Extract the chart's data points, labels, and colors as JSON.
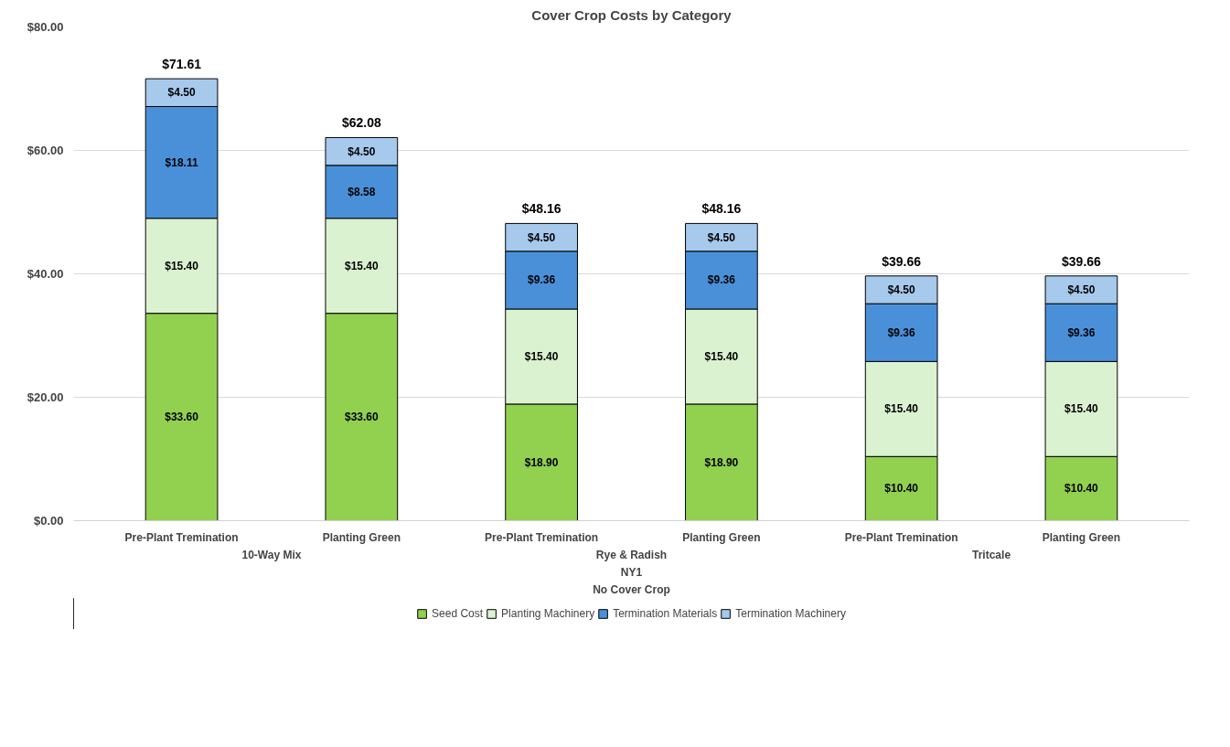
{
  "chart_data": {
    "type": "bar",
    "stacked": true,
    "title": "Cover Crop Costs by Category",
    "categories": [
      "Pre-Plant Tremination",
      "Planting Green",
      "Pre-Plant Tremination",
      "Planting Green",
      "Pre-Plant Tremination",
      "Planting Green"
    ],
    "series": [
      {
        "name": "Seed Cost",
        "color": "#92d050",
        "values": [
          33.6,
          33.6,
          18.9,
          18.9,
          10.4,
          10.4
        ],
        "value_labels": [
          "$33.60",
          "$33.60",
          "$18.90",
          "$18.90",
          "$10.40",
          "$10.40"
        ]
      },
      {
        "name": "Planting Machinery",
        "color": "#daf2d0",
        "values": [
          15.4,
          15.4,
          15.4,
          15.4,
          15.4,
          15.4
        ],
        "value_labels": [
          "$15.40",
          "$15.40",
          "$15.40",
          "$15.40",
          "$15.40",
          "$15.40"
        ]
      },
      {
        "name": "Termination Materials",
        "color": "#4a90d9",
        "values": [
          18.11,
          8.58,
          9.36,
          9.36,
          9.36,
          9.36
        ],
        "value_labels": [
          "$18.11",
          "$8.58",
          "$9.36",
          "$9.36",
          "$9.36",
          "$9.36"
        ]
      },
      {
        "name": "Termination Machinery",
        "color": "#a6c9ec",
        "values": [
          4.5,
          4.5,
          4.5,
          4.5,
          4.5,
          4.5
        ],
        "value_labels": [
          "$4.50",
          "$4.50",
          "$4.50",
          "$4.50",
          "$4.50",
          "$4.50"
        ]
      }
    ],
    "totals": [
      "$71.61",
      "$62.08",
      "$48.16",
      "$48.16",
      "$39.66",
      "$39.66"
    ],
    "annotations": [
      "10-Way Mix",
      "Rye & Radish",
      "Tritcale",
      "NY1",
      "No Cover Crop"
    ],
    "ylim": [
      0,
      80
    ],
    "yticks": [
      {
        "value": 0,
        "label": "$0.00"
      },
      {
        "value": 20,
        "label": "$20.00"
      },
      {
        "value": 40,
        "label": "$40.00"
      },
      {
        "value": 60,
        "label": "$60.00"
      },
      {
        "value": 80,
        "label": "$80.00"
      }
    ],
    "grid": "y",
    "legend": "bottom"
  }
}
